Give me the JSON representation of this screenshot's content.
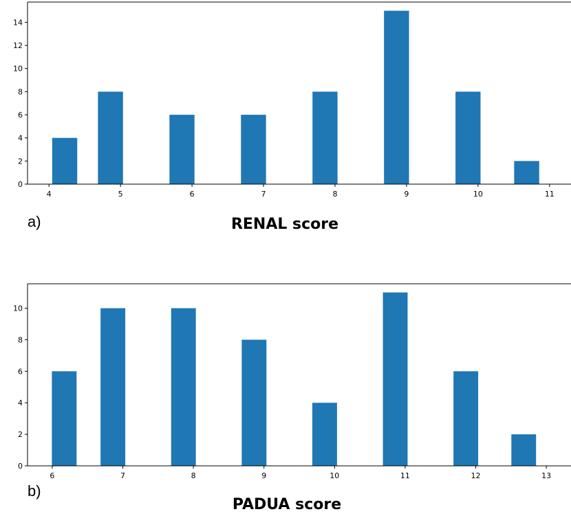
{
  "chart_data": [
    {
      "type": "bar",
      "panel_label": "a)",
      "xlabel": "RENAL score",
      "ylabel": "",
      "color": "#1f77b4",
      "categories": [
        "4",
        "5",
        "6",
        "7",
        "8",
        "9",
        "10",
        "11"
      ],
      "values": [
        4,
        8,
        6,
        6,
        8,
        15,
        8,
        2
      ],
      "ylim": [
        0,
        15.75
      ],
      "yticks": [
        0,
        2,
        4,
        6,
        8,
        10,
        12,
        14
      ],
      "xlim": [
        3.7,
        11.3
      ],
      "xticks": [
        4,
        5,
        6,
        7,
        8,
        9,
        10,
        11
      ],
      "bar_centers": [
        4.22,
        4.86,
        5.86,
        6.86,
        7.86,
        8.86,
        9.86,
        10.68
      ],
      "bar_width": 0.35,
      "grid": false
    },
    {
      "type": "bar",
      "panel_label": "b)",
      "xlabel": "PADUA score",
      "ylabel": "",
      "color": "#1f77b4",
      "categories": [
        "6",
        "7",
        "8",
        "9",
        "10",
        "11",
        "12",
        "13"
      ],
      "values": [
        6,
        10,
        10,
        8,
        4,
        11,
        6,
        2
      ],
      "ylim": [
        0,
        11.55
      ],
      "yticks": [
        0,
        2,
        4,
        6,
        8,
        10
      ],
      "xlim": [
        5.65,
        13.35
      ],
      "xticks": [
        6,
        7,
        8,
        9,
        10,
        11,
        12,
        13
      ],
      "bar_centers": [
        6.17,
        6.86,
        7.86,
        8.86,
        9.86,
        10.86,
        11.86,
        12.68
      ],
      "bar_width": 0.35,
      "grid": false
    }
  ]
}
